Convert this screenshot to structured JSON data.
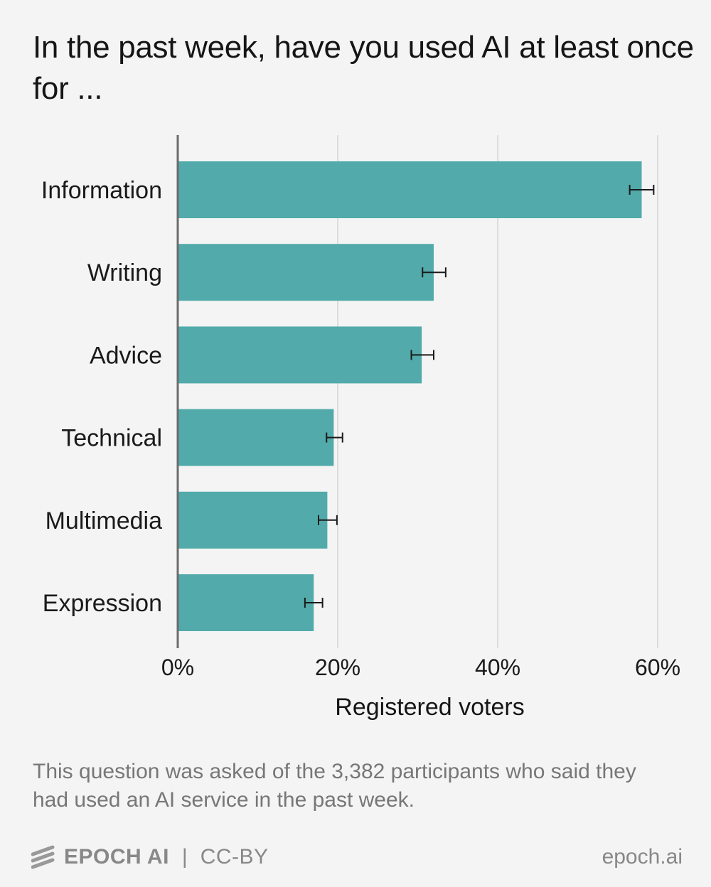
{
  "title": "In the past week, have you used AI at least once for ...",
  "note": "This question was asked of the 3,382 participants who said they had used an AI service in the past week.",
  "footer": {
    "brand": "EPOCH AI",
    "separator": "|",
    "license": "CC-BY",
    "site": "epoch.ai"
  },
  "colors": {
    "bar": "#52aaaa",
    "grid": "#dcdcdc",
    "axis": "#6c6c6c",
    "errorbar": "#1a1a1a"
  },
  "chart_data": {
    "type": "bar",
    "orientation": "horizontal",
    "categories": [
      "Information",
      "Writing",
      "Advice",
      "Technical",
      "Multimedia",
      "Expression"
    ],
    "values": [
      58,
      32,
      30.5,
      19.5,
      18.7,
      17
    ],
    "error_low": [
      56.5,
      30.6,
      29.2,
      18.6,
      17.6,
      15.9
    ],
    "error_high": [
      59.5,
      33.5,
      32,
      20.6,
      19.9,
      18.1
    ],
    "xlim": [
      0,
      60
    ],
    "xticks": [
      0,
      20,
      40,
      60
    ],
    "xtick_labels": [
      "0%",
      "20%",
      "40%",
      "60%"
    ],
    "xlabel": "Registered voters",
    "grid": true
  }
}
